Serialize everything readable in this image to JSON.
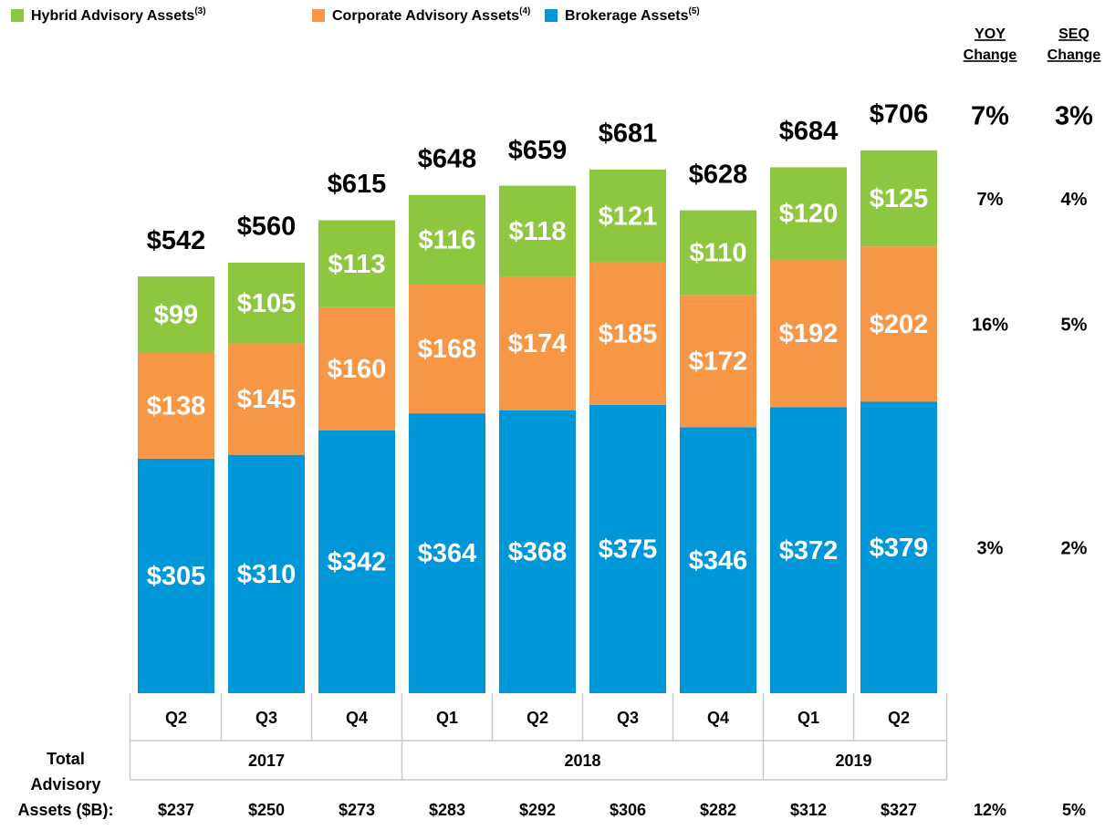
{
  "chart_data": {
    "type": "bar",
    "stacked": true,
    "categories": [
      "Q2",
      "Q3",
      "Q4",
      "Q1",
      "Q2",
      "Q3",
      "Q4",
      "Q1",
      "Q2"
    ],
    "years": [
      "2017",
      "2017",
      "2017",
      "2018",
      "2018",
      "2018",
      "2018",
      "2019",
      "2019"
    ],
    "series": [
      {
        "name": "Brokerage Assets",
        "footnote": "(5)",
        "color": "#0097d8",
        "values": [
          305,
          310,
          342,
          364,
          368,
          375,
          346,
          372,
          379
        ],
        "value_labels": [
          "$305",
          "$310",
          "$342",
          "$364",
          "$368",
          "$375",
          "$346",
          "$372",
          "$379"
        ]
      },
      {
        "name": "Corporate Advisory Assets",
        "footnote": "(4)",
        "color": "#f79646",
        "values": [
          138,
          145,
          160,
          168,
          174,
          185,
          172,
          192,
          202
        ],
        "value_labels": [
          "$138",
          "$145",
          "$160",
          "$168",
          "$174",
          "$185",
          "$172",
          "$192",
          "$202"
        ]
      },
      {
        "name": "Hybrid Advisory Assets",
        "footnote": "(3)",
        "color": "#8dc63f",
        "values": [
          99,
          105,
          113,
          116,
          118,
          121,
          110,
          120,
          125
        ],
        "value_labels": [
          "$99",
          "$105",
          "$113",
          "$116",
          "$118",
          "$121",
          "$110",
          "$120",
          "$125"
        ]
      }
    ],
    "totals": {
      "values": [
        542,
        560,
        615,
        648,
        659,
        681,
        628,
        684,
        706
      ],
      "value_labels": [
        "$542",
        "$560",
        "$615",
        "$648",
        "$659",
        "$681",
        "$628",
        "$684",
        "$706"
      ]
    },
    "change_headers": {
      "yoy": [
        "YOY",
        "Change"
      ],
      "seq": [
        "SEQ",
        "Change"
      ]
    },
    "changes": {
      "total": {
        "yoy": "7%",
        "seq": "3%"
      },
      "series": [
        {
          "yoy": "3%",
          "seq": "2%"
        },
        {
          "yoy": "16%",
          "seq": "5%"
        },
        {
          "yoy": "7%",
          "seq": "4%"
        }
      ]
    },
    "advisory_row": {
      "label": [
        "Total",
        "Advisory",
        "Assets ($B):"
      ],
      "values": [
        "$237",
        "$250",
        "$273",
        "$283",
        "$292",
        "$306",
        "$282",
        "$312",
        "$327"
      ],
      "yoy": "12%",
      "seq": "5%"
    }
  }
}
